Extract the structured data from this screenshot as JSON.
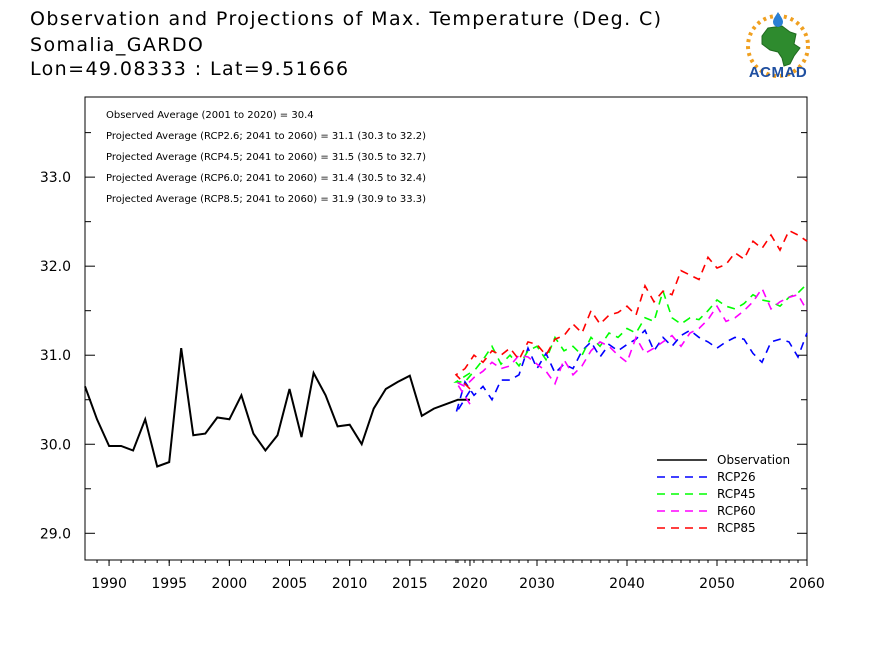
{
  "header": {
    "title": "Observation and Projections of Max. Temperature (Deg. C)",
    "station": "Somalia_GARDO",
    "coords": "Lon=49.08333 : Lat=9.51666"
  },
  "logo": {
    "text": "ACMAD"
  },
  "notes": [
    "Observed Average (2001 to 2020) = 30.4",
    "Projected Average (RCP2.6; 2041 to 2060) = 31.1 (30.3 to 32.2)",
    "Projected Average (RCP4.5; 2041 to 2060) = 31.5 (30.5 to 32.7)",
    "Projected Average (RCP6.0; 2041 to 2060) = 31.4 (30.5 to 32.4)",
    "Projected Average (RCP8.5; 2041 to 2060) = 31.9 (30.9 to 33.3)"
  ],
  "chart_data": {
    "type": "line",
    "title": "Observation and Projections of Max. Temperature (Deg. C)",
    "xlabel": "",
    "ylabel": "",
    "ylim": [
      28.7,
      33.9
    ],
    "grid": false,
    "legend_position": "bottom-right",
    "y_ticks": [
      "29.0",
      "30.0",
      "31.0",
      "32.0",
      "33.0"
    ],
    "x_ticks": [
      "1990",
      "1995",
      "2000",
      "2005",
      "2010",
      "2015",
      "2020",
      "2030",
      "2040",
      "2050",
      "2060"
    ],
    "series": [
      {
        "name": "Observation",
        "color": "#000000",
        "dash": "solid",
        "x": [
          1988,
          1989,
          1990,
          1991,
          1992,
          1993,
          1994,
          1995,
          1996,
          1997,
          1998,
          1999,
          2000,
          2001,
          2002,
          2003,
          2004,
          2005,
          2006,
          2007,
          2008,
          2009,
          2010,
          2011,
          2012,
          2013,
          2014,
          2015,
          2016,
          2017,
          2018,
          2019,
          2020
        ],
        "y": [
          30.65,
          30.28,
          29.98,
          29.98,
          29.93,
          30.28,
          29.75,
          29.8,
          31.08,
          30.1,
          30.12,
          30.3,
          30.28,
          30.55,
          30.12,
          29.93,
          30.1,
          30.62,
          30.08,
          30.8,
          30.55,
          30.2,
          30.22,
          30.0,
          30.4,
          30.62,
          30.7,
          30.77,
          30.32,
          30.4,
          30.45,
          30.5,
          30.5
        ]
      },
      {
        "name": "RCP26",
        "color": "#0000ff",
        "dash": "dashed",
        "x": [
          2020,
          2021,
          2022,
          2023,
          2024,
          2025,
          2026,
          2027,
          2028,
          2029,
          2030,
          2031,
          2032,
          2033,
          2034,
          2035,
          2036,
          2037,
          2038,
          2039,
          2040,
          2041,
          2042,
          2043,
          2044,
          2045,
          2046,
          2047,
          2048,
          2049,
          2050,
          2051,
          2052,
          2053,
          2054,
          2055,
          2056,
          2057,
          2058,
          2059,
          2060
        ],
        "y": [
          30.6,
          30.35,
          30.7,
          30.55,
          30.65,
          30.5,
          30.72,
          30.72,
          30.78,
          31.08,
          30.85,
          31.02,
          30.8,
          30.9,
          30.85,
          31.05,
          31.15,
          30.98,
          31.12,
          31.05,
          31.12,
          31.18,
          31.28,
          31.05,
          31.2,
          31.1,
          31.22,
          31.28,
          31.2,
          31.15,
          31.08,
          31.15,
          31.2,
          31.18,
          31.02,
          30.92,
          31.15,
          31.18,
          31.15,
          30.98,
          31.25
        ]
      },
      {
        "name": "RCP45",
        "color": "#00ff00",
        "dash": "dashed",
        "x": [
          2020,
          2021,
          2022,
          2023,
          2024,
          2025,
          2026,
          2027,
          2028,
          2029,
          2030,
          2031,
          2032,
          2033,
          2034,
          2035,
          2036,
          2037,
          2038,
          2039,
          2040,
          2041,
          2042,
          2043,
          2044,
          2045,
          2046,
          2047,
          2048,
          2049,
          2050,
          2051,
          2052,
          2053,
          2054,
          2055,
          2056,
          2057,
          2058,
          2059,
          2060
        ],
        "y": [
          30.8,
          30.7,
          30.7,
          30.82,
          30.95,
          31.1,
          30.9,
          31.0,
          30.88,
          31.05,
          31.1,
          30.95,
          31.2,
          31.05,
          31.1,
          31.0,
          31.2,
          31.1,
          31.25,
          31.2,
          31.3,
          31.25,
          31.42,
          31.38,
          31.72,
          31.42,
          31.35,
          31.42,
          31.4,
          31.5,
          31.62,
          31.55,
          31.52,
          31.58,
          31.68,
          31.62,
          31.6,
          31.55,
          31.65,
          31.7,
          31.8
        ]
      },
      {
        "name": "RCP60",
        "color": "#ff00ff",
        "dash": "dashed",
        "x": [
          2020,
          2021,
          2022,
          2023,
          2024,
          2025,
          2026,
          2027,
          2028,
          2029,
          2030,
          2031,
          2032,
          2033,
          2034,
          2035,
          2036,
          2037,
          2038,
          2039,
          2040,
          2041,
          2042,
          2043,
          2044,
          2045,
          2046,
          2047,
          2048,
          2049,
          2050,
          2051,
          2052,
          2053,
          2054,
          2055,
          2056,
          2057,
          2058,
          2059,
          2060
        ],
        "y": [
          30.45,
          30.7,
          30.65,
          30.75,
          30.82,
          30.92,
          30.85,
          30.88,
          31.0,
          30.98,
          30.9,
          30.82,
          30.68,
          30.95,
          30.78,
          30.88,
          31.05,
          31.15,
          31.1,
          31.0,
          30.92,
          31.2,
          31.02,
          31.08,
          31.15,
          31.22,
          31.1,
          31.25,
          31.3,
          31.4,
          31.55,
          31.38,
          31.42,
          31.5,
          31.6,
          31.75,
          31.52,
          31.6,
          31.65,
          31.68,
          31.5
        ]
      },
      {
        "name": "RCP85",
        "color": "#ff0000",
        "dash": "dashed",
        "x": [
          2020,
          2021,
          2022,
          2023,
          2024,
          2025,
          2026,
          2027,
          2028,
          2029,
          2030,
          2031,
          2032,
          2033,
          2034,
          2035,
          2036,
          2037,
          2038,
          2039,
          2040,
          2041,
          2042,
          2043,
          2044,
          2045,
          2046,
          2047,
          2048,
          2049,
          2050,
          2051,
          2052,
          2053,
          2054,
          2055,
          2056,
          2057,
          2058,
          2059,
          2060
        ],
        "y": [
          30.62,
          30.78,
          30.85,
          31.0,
          30.92,
          31.05,
          31.0,
          31.08,
          30.95,
          31.15,
          31.12,
          31.0,
          31.18,
          31.22,
          31.35,
          31.25,
          31.5,
          31.35,
          31.45,
          31.48,
          31.55,
          31.45,
          31.78,
          31.6,
          31.72,
          31.68,
          31.95,
          31.9,
          31.85,
          32.1,
          31.98,
          32.02,
          32.15,
          32.08,
          32.28,
          32.2,
          32.35,
          32.18,
          32.4,
          32.35,
          32.28
        ]
      }
    ]
  }
}
